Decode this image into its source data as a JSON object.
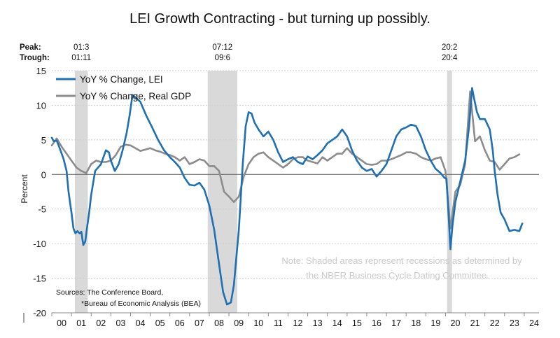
{
  "chart_data": {
    "type": "line",
    "title": "LEI Growth Contracting - but turning up possibly.",
    "ylabel": "Percent",
    "xlabel": "",
    "ylim": [
      -20,
      15
    ],
    "xlim": [
      2000.0,
      2024.75
    ],
    "yticks": [
      -20,
      -15,
      -10,
      -5,
      0,
      5,
      10,
      15
    ],
    "xtick_labels": [
      "00",
      "01",
      "02",
      "03",
      "04",
      "05",
      "06",
      "07",
      "08",
      "09",
      "10",
      "11",
      "12",
      "13",
      "14",
      "15",
      "16",
      "17",
      "18",
      "19",
      "20",
      "21",
      "22",
      "23",
      "24"
    ],
    "peak_label": "Peak:",
    "trough_label": "Trough:",
    "recessions": [
      {
        "start": 2001.17,
        "end": 2001.83,
        "peak_label": "01:3",
        "trough_label": "01:11"
      },
      {
        "start": 2007.92,
        "end": 2009.42,
        "peak_label": "07:12",
        "trough_label": "09:6"
      },
      {
        "start": 2020.08,
        "end": 2020.33,
        "peak_label": "20:2",
        "trough_label": "20:4"
      }
    ],
    "series": [
      {
        "name": "YoY % Change, LEI",
        "color": "#1f6fb2",
        "x": [
          2000.0,
          2000.1,
          2000.25,
          2000.4,
          2000.5,
          2000.6,
          2000.75,
          2000.85,
          2001.0,
          2001.1,
          2001.2,
          2001.3,
          2001.4,
          2001.5,
          2001.6,
          2001.7,
          2001.8,
          2001.9,
          2002.0,
          2002.2,
          2002.5,
          2002.75,
          2002.9,
          2003.0,
          2003.2,
          2003.4,
          2003.6,
          2003.8,
          2003.95,
          2004.1,
          2004.3,
          2004.5,
          2004.8,
          2005.1,
          2005.4,
          2005.7,
          2006.0,
          2006.25,
          2006.5,
          2006.75,
          2007.0,
          2007.25,
          2007.5,
          2007.75,
          2008.0,
          2008.25,
          2008.5,
          2008.7,
          2008.9,
          2009.1,
          2009.25,
          2009.5,
          2009.7,
          2009.85,
          2010.0,
          2010.15,
          2010.3,
          2010.5,
          2010.75,
          2011.0,
          2011.25,
          2011.5,
          2011.75,
          2012.0,
          2012.25,
          2012.5,
          2012.75,
          2013.0,
          2013.25,
          2013.5,
          2013.75,
          2014.0,
          2014.25,
          2014.5,
          2014.75,
          2015.0,
          2015.25,
          2015.5,
          2015.75,
          2016.0,
          2016.25,
          2016.5,
          2016.75,
          2017.0,
          2017.25,
          2017.5,
          2017.75,
          2018.0,
          2018.25,
          2018.5,
          2018.75,
          2019.0,
          2019.25,
          2019.5,
          2019.75,
          2019.95,
          2020.05,
          2020.15,
          2020.25,
          2020.35,
          2020.5,
          2020.75,
          2021.0,
          2021.2,
          2021.35,
          2021.45,
          2021.6,
          2021.75,
          2022.0,
          2022.25,
          2022.4,
          2022.5,
          2022.65,
          2022.8,
          2023.0,
          2023.25,
          2023.5,
          2023.75,
          2023.9
        ],
        "y": [
          5.3,
          4.8,
          4.9,
          3.8,
          3.0,
          2.2,
          0.5,
          -2.5,
          -5.5,
          -7.8,
          -8.5,
          -8.2,
          -8.5,
          -8.3,
          -10.2,
          -9.7,
          -7.5,
          -5.5,
          -3.0,
          0.5,
          1.5,
          3.5,
          3.2,
          2.0,
          0.5,
          1.5,
          3.5,
          6.0,
          8.5,
          11.5,
          11.0,
          10.5,
          8.5,
          6.8,
          5.0,
          3.5,
          2.5,
          1.8,
          1.0,
          -0.5,
          -1.5,
          -1.6,
          -1.2,
          -2.2,
          -4.5,
          -8.0,
          -13.0,
          -17.0,
          -18.8,
          -18.5,
          -16.0,
          -8.0,
          1.5,
          7.0,
          9.0,
          8.8,
          7.5,
          6.5,
          5.5,
          6.2,
          5.0,
          3.2,
          1.8,
          2.2,
          2.5,
          1.8,
          1.5,
          2.6,
          2.2,
          2.8,
          3.5,
          4.5,
          5.0,
          5.5,
          6.5,
          5.5,
          3.5,
          2.0,
          1.0,
          0.5,
          0.8,
          -0.3,
          0.5,
          1.5,
          3.5,
          5.5,
          6.5,
          6.8,
          7.2,
          7.0,
          5.5,
          3.5,
          2.0,
          0.8,
          0.2,
          -0.5,
          -0.6,
          -5.5,
          -10.8,
          -7.5,
          -4.0,
          -1.0,
          2.0,
          7.0,
          12.5,
          11.0,
          9.0,
          8.0,
          8.0,
          6.5,
          3.5,
          0.5,
          -3.0,
          -5.5,
          -6.5,
          -8.2,
          -8.0,
          -8.2,
          -7.1
        ]
      },
      {
        "name": "YoY % Change, Real GDP",
        "color": "#8c8c8c",
        "x": [
          2000.0,
          2000.25,
          2000.5,
          2000.75,
          2001.0,
          2001.25,
          2001.5,
          2001.75,
          2002.0,
          2002.25,
          2002.5,
          2002.75,
          2003.0,
          2003.25,
          2003.5,
          2003.75,
          2004.0,
          2004.25,
          2004.5,
          2004.75,
          2005.0,
          2005.25,
          2005.5,
          2005.75,
          2006.0,
          2006.25,
          2006.5,
          2006.75,
          2007.0,
          2007.25,
          2007.5,
          2007.75,
          2008.0,
          2008.25,
          2008.5,
          2008.75,
          2009.0,
          2009.25,
          2009.5,
          2009.75,
          2010.0,
          2010.25,
          2010.5,
          2010.75,
          2011.0,
          2011.25,
          2011.5,
          2011.75,
          2012.0,
          2012.25,
          2012.5,
          2012.75,
          2013.0,
          2013.25,
          2013.5,
          2013.75,
          2014.0,
          2014.25,
          2014.5,
          2014.75,
          2015.0,
          2015.25,
          2015.5,
          2015.75,
          2016.0,
          2016.25,
          2016.5,
          2016.75,
          2017.0,
          2017.25,
          2017.5,
          2017.75,
          2018.0,
          2018.25,
          2018.5,
          2018.75,
          2019.0,
          2019.25,
          2019.5,
          2019.75,
          2020.0,
          2020.25,
          2020.5,
          2020.75,
          2021.0,
          2021.25,
          2021.5,
          2021.75,
          2022.0,
          2022.25,
          2022.5,
          2022.75,
          2023.0,
          2023.25,
          2023.5,
          2023.75
        ],
        "y": [
          4.2,
          5.2,
          4.0,
          3.0,
          2.0,
          1.0,
          0.5,
          0.2,
          1.5,
          2.0,
          1.8,
          1.8,
          2.0,
          2.8,
          4.0,
          4.3,
          4.2,
          3.8,
          3.4,
          3.6,
          3.8,
          3.5,
          3.3,
          3.0,
          2.8,
          2.5,
          2.0,
          2.5,
          1.5,
          1.8,
          2.2,
          2.0,
          1.2,
          1.2,
          0.5,
          -2.5,
          -3.2,
          -4.0,
          -3.2,
          -0.3,
          1.5,
          2.5,
          3.0,
          3.2,
          2.5,
          2.0,
          1.5,
          1.0,
          1.5,
          2.2,
          2.5,
          2.5,
          2.0,
          1.8,
          1.6,
          2.5,
          2.0,
          2.5,
          3.0,
          3.0,
          3.8,
          3.0,
          2.5,
          2.0,
          1.5,
          1.4,
          1.5,
          2.0,
          2.0,
          2.2,
          2.5,
          2.8,
          3.2,
          3.2,
          3.0,
          2.5,
          2.2,
          2.0,
          2.3,
          2.5,
          0.5,
          -7.8,
          -2.5,
          -1.5,
          1.5,
          12.0,
          4.8,
          5.5,
          3.5,
          2.0,
          1.8,
          0.7,
          1.5,
          2.3,
          2.5,
          2.9
        ]
      }
    ],
    "legend": [
      {
        "label": "YoY % Change, LEI",
        "color": "#1f6fb2"
      },
      {
        "label": "YoY % Change, Real GDP",
        "color": "#8c8c8c"
      }
    ],
    "note_lines": [
      "Note: Shaded areas represent recessions as determined by",
      "the NBER Business Cycle Dating Committee."
    ],
    "source_lines": [
      "Sources: The Conference Board,",
      "*Bureau of Economic Analysis (BEA)"
    ]
  }
}
